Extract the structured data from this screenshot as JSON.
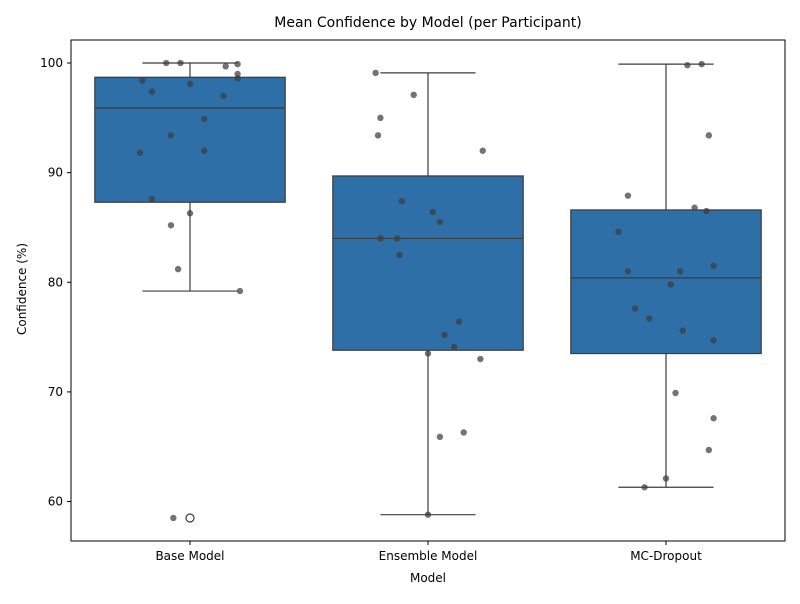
{
  "chart_data": {
    "type": "box",
    "title": "Mean Confidence by Model (per Participant)",
    "xlabel": "Model",
    "ylabel": "Confidence (%)",
    "ylim": [
      56.4,
      102.1
    ],
    "yticks": [
      60,
      70,
      80,
      90,
      100
    ],
    "grid": false,
    "categories": [
      "Base Model",
      "Ensemble Model",
      "MC-Dropout"
    ],
    "box_color": "#2e6fa8",
    "line_color": "#3b3b3b",
    "point_color": "#3d3d3d",
    "boxes": [
      {
        "category": "Base Model",
        "q1": 87.3,
        "median": 95.9,
        "q3": 98.7,
        "whisker_low": 79.2,
        "whisker_high": 100.0,
        "outliers": [
          58.5
        ],
        "points": [
          {
            "dx": -0.1,
            "y": 100.0
          },
          {
            "dx": -0.04,
            "y": 100.0
          },
          {
            "dx": 0.15,
            "y": 99.7
          },
          {
            "dx": 0.2,
            "y": 99.9
          },
          {
            "dx": 0.2,
            "y": 99.0
          },
          {
            "dx": -0.2,
            "y": 98.4
          },
          {
            "dx": 0.2,
            "y": 98.6
          },
          {
            "dx": 0.0,
            "y": 98.1
          },
          {
            "dx": -0.16,
            "y": 97.4
          },
          {
            "dx": 0.14,
            "y": 97.0
          },
          {
            "dx": 0.06,
            "y": 94.9
          },
          {
            "dx": -0.08,
            "y": 93.4
          },
          {
            "dx": 0.06,
            "y": 92.0
          },
          {
            "dx": -0.21,
            "y": 91.8
          },
          {
            "dx": -0.16,
            "y": 87.6
          },
          {
            "dx": 0.0,
            "y": 86.3
          },
          {
            "dx": -0.08,
            "y": 85.2
          },
          {
            "dx": -0.05,
            "y": 81.2
          },
          {
            "dx": 0.21,
            "y": 79.2
          },
          {
            "dx": -0.07,
            "y": 58.5
          }
        ]
      },
      {
        "category": "Ensemble Model",
        "q1": 73.8,
        "median": 84.0,
        "q3": 89.7,
        "whisker_low": 58.8,
        "whisker_high": 99.1,
        "outliers": [],
        "points": [
          {
            "dx": -0.22,
            "y": 99.1
          },
          {
            "dx": -0.06,
            "y": 97.1
          },
          {
            "dx": -0.2,
            "y": 95.0
          },
          {
            "dx": -0.21,
            "y": 93.4
          },
          {
            "dx": 0.23,
            "y": 92.0
          },
          {
            "dx": -0.11,
            "y": 87.4
          },
          {
            "dx": 0.02,
            "y": 86.4
          },
          {
            "dx": 0.05,
            "y": 85.5
          },
          {
            "dx": -0.2,
            "y": 84.0
          },
          {
            "dx": -0.13,
            "y": 84.0
          },
          {
            "dx": -0.12,
            "y": 82.5
          },
          {
            "dx": 0.13,
            "y": 76.4
          },
          {
            "dx": 0.07,
            "y": 75.2
          },
          {
            "dx": 0.11,
            "y": 74.1
          },
          {
            "dx": 0.0,
            "y": 73.5
          },
          {
            "dx": 0.22,
            "y": 73.0
          },
          {
            "dx": 0.15,
            "y": 66.3
          },
          {
            "dx": 0.05,
            "y": 65.9
          },
          {
            "dx": 0.0,
            "y": 58.8
          }
        ]
      },
      {
        "category": "MC-Dropout",
        "q1": 73.5,
        "median": 80.4,
        "q3": 86.6,
        "whisker_low": 61.3,
        "whisker_high": 99.9,
        "outliers": [],
        "points": [
          {
            "dx": 0.15,
            "y": 99.9
          },
          {
            "dx": 0.09,
            "y": 99.8
          },
          {
            "dx": 0.18,
            "y": 93.4
          },
          {
            "dx": -0.16,
            "y": 87.9
          },
          {
            "dx": 0.12,
            "y": 86.8
          },
          {
            "dx": 0.17,
            "y": 86.5
          },
          {
            "dx": -0.2,
            "y": 84.6
          },
          {
            "dx": 0.2,
            "y": 81.5
          },
          {
            "dx": -0.16,
            "y": 81.0
          },
          {
            "dx": 0.06,
            "y": 81.0
          },
          {
            "dx": 0.02,
            "y": 79.8
          },
          {
            "dx": -0.13,
            "y": 77.6
          },
          {
            "dx": -0.07,
            "y": 76.7
          },
          {
            "dx": 0.07,
            "y": 75.6
          },
          {
            "dx": 0.2,
            "y": 74.7
          },
          {
            "dx": 0.04,
            "y": 69.9
          },
          {
            "dx": 0.2,
            "y": 67.6
          },
          {
            "dx": 0.18,
            "y": 64.7
          },
          {
            "dx": 0.0,
            "y": 62.1
          },
          {
            "dx": -0.09,
            "y": 61.3
          }
        ]
      }
    ]
  }
}
